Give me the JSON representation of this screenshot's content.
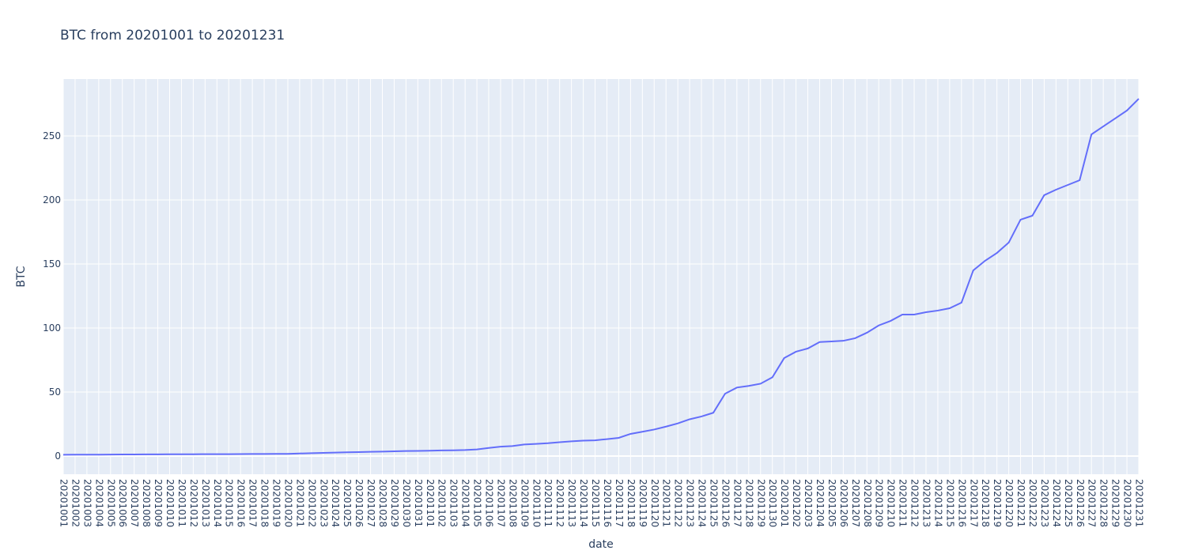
{
  "chart_data": {
    "type": "line",
    "title": "BTC from 20201001 to 20201231",
    "x_label": "date",
    "y_label": "BTC",
    "categories": [
      "20201001",
      "20201002",
      "20201003",
      "20201004",
      "20201005",
      "20201006",
      "20201007",
      "20201008",
      "20201009",
      "20201010",
      "20201011",
      "20201012",
      "20201013",
      "20201014",
      "20201015",
      "20201016",
      "20201017",
      "20201018",
      "20201019",
      "20201020",
      "20201021",
      "20201022",
      "20201023",
      "20201024",
      "20201025",
      "20201026",
      "20201027",
      "20201028",
      "20201029",
      "20201030",
      "20201031",
      "20201101",
      "20201102",
      "20201103",
      "20201104",
      "20201105",
      "20201106",
      "20201107",
      "20201108",
      "20201109",
      "20201110",
      "20201111",
      "20201112",
      "20201113",
      "20201114",
      "20201115",
      "20201116",
      "20201117",
      "20201118",
      "20201119",
      "20201120",
      "20201121",
      "20201122",
      "20201123",
      "20201124",
      "20201125",
      "20201126",
      "20201127",
      "20201128",
      "20201129",
      "20201130",
      "20201201",
      "20201202",
      "20201203",
      "20201204",
      "20201205",
      "20201206",
      "20201207",
      "20201208",
      "20201209",
      "20201210",
      "20201211",
      "20201212",
      "20201213",
      "20201214",
      "20201215",
      "20201216",
      "20201217",
      "20201218",
      "20201219",
      "20201220",
      "20201221",
      "20201222",
      "20201223",
      "20201224",
      "20201225",
      "20201226",
      "20201227",
      "20201228",
      "20201229",
      "20201230",
      "20201231"
    ],
    "series": [
      {
        "name": "BTC",
        "color": "#636efa",
        "values": [
          1.0,
          1.05,
          1.1,
          1.1,
          1.15,
          1.2,
          1.25,
          1.3,
          1.3,
          1.35,
          1.4,
          1.4,
          1.45,
          1.5,
          1.5,
          1.55,
          1.6,
          1.65,
          1.7,
          1.7,
          2.0,
          2.2,
          2.5,
          2.7,
          2.9,
          3.1,
          3.3,
          3.5,
          3.7,
          3.9,
          4.0,
          4.2,
          4.4,
          4.5,
          4.7,
          5.2,
          6.3,
          7.3,
          7.8,
          9.0,
          9.5,
          10,
          10.8,
          11.5,
          12,
          12.3,
          13.2,
          14.2,
          17.3,
          19,
          20.7,
          23,
          25.5,
          28.7,
          30.9,
          33.8,
          48.7,
          53.5,
          54.8,
          56.5,
          61.5,
          76.5,
          81.5,
          84,
          89,
          89.5,
          90,
          92,
          96.3,
          102,
          105.5,
          110.5,
          110.5,
          112.3,
          113.6,
          115.4,
          119.8,
          145,
          152.5,
          158.6,
          166.7,
          184.6,
          187.7,
          203.7,
          208,
          211.7,
          215.4,
          251.2,
          257.4,
          263.6,
          269.8,
          279
        ]
      }
    ],
    "ylim": [
      -14.2,
      294.4
    ],
    "yticks": [
      0,
      50,
      100,
      150,
      200,
      250
    ],
    "grid": true
  }
}
